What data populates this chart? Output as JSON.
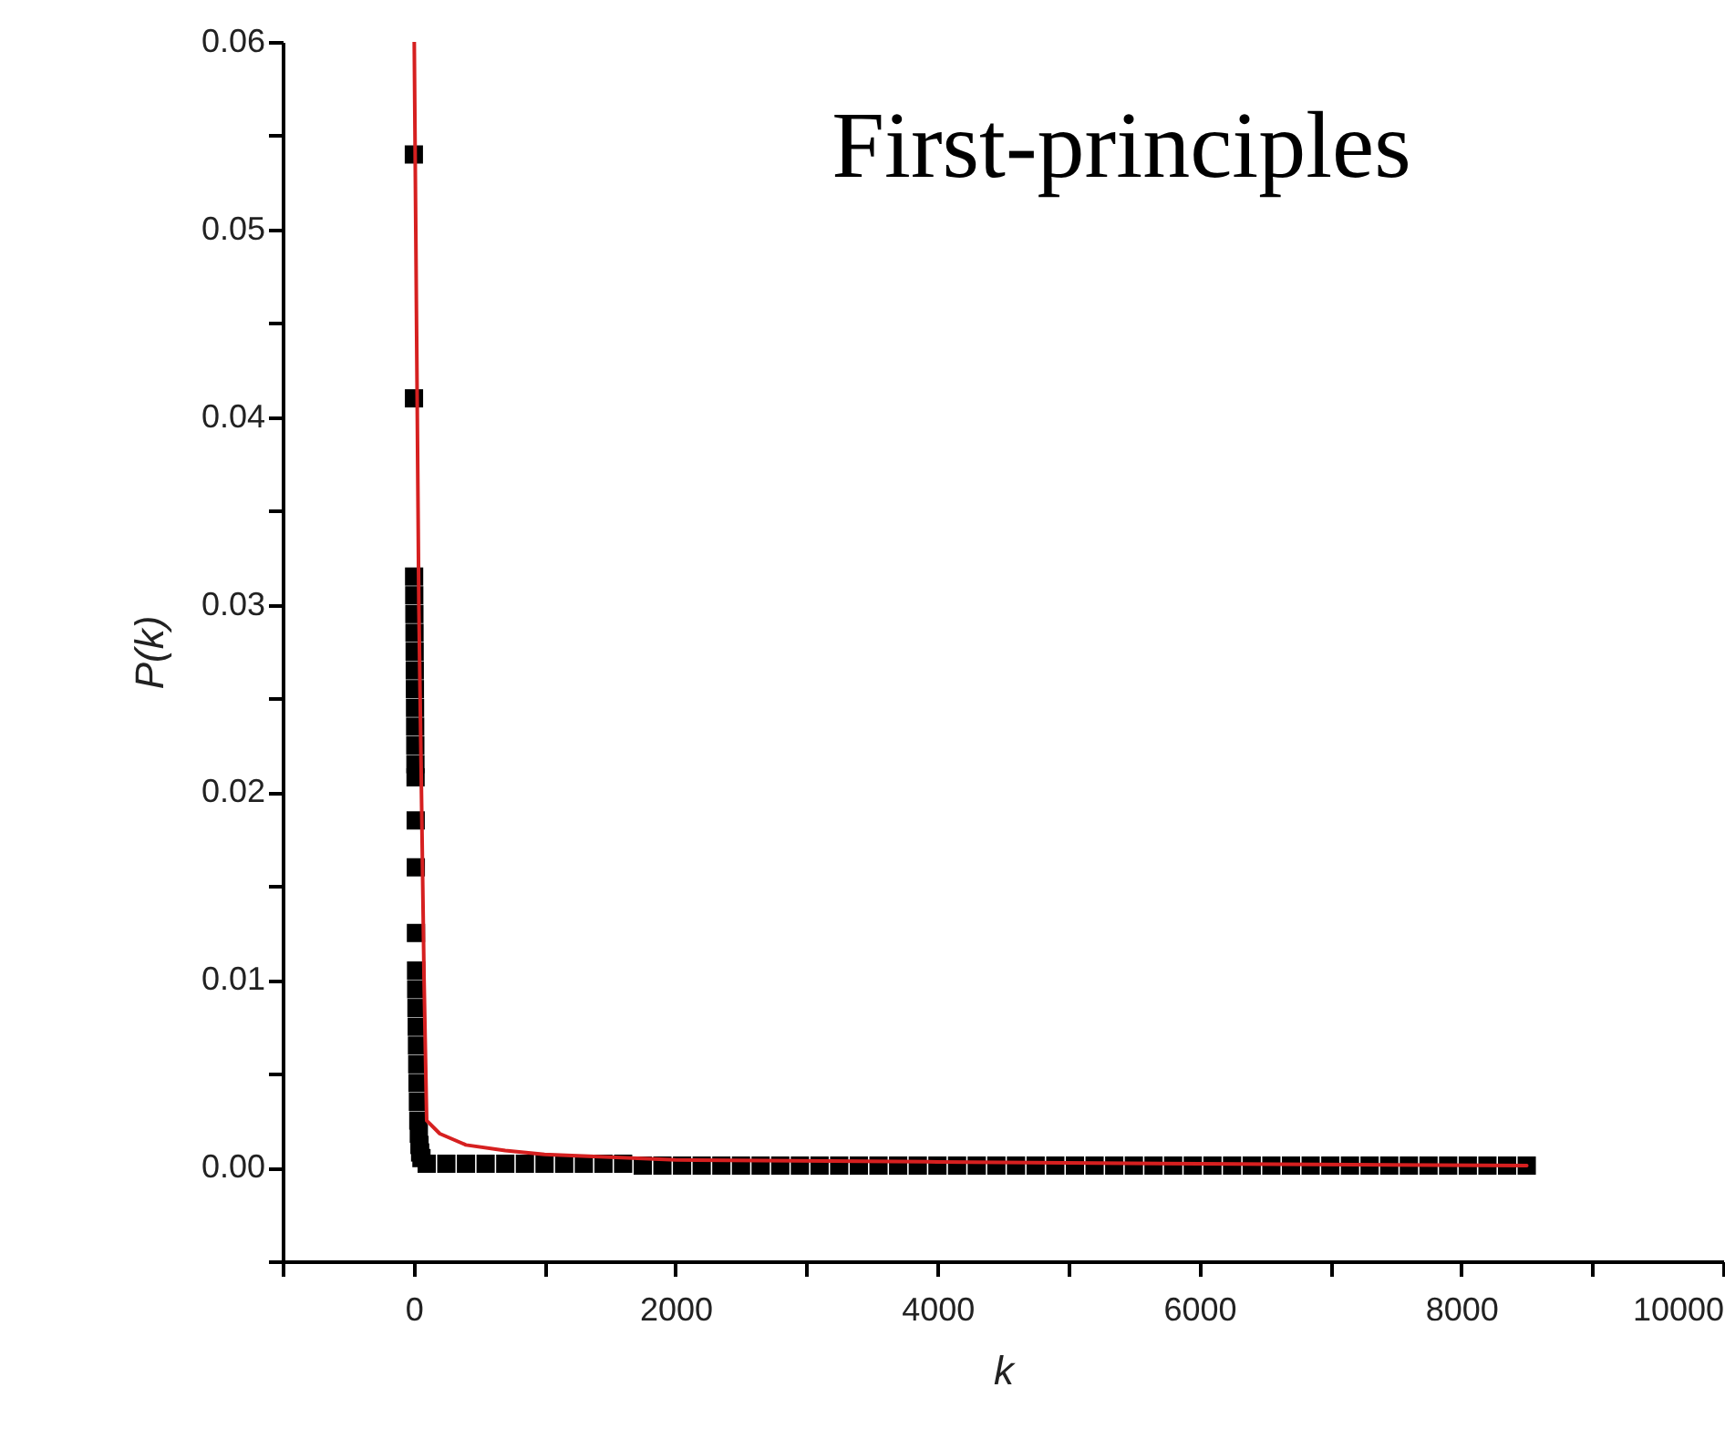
{
  "chart_data": {
    "type": "scatter",
    "xlabel": "k",
    "ylabel": "P(k)",
    "annotations": [
      "First-principles"
    ],
    "xlim": [
      -1000,
      10000
    ],
    "xticks": [
      {
        "value": -1000,
        "label": null
      },
      0,
      {
        "value": 1000,
        "label": null
      },
      2000,
      {
        "value": 3000,
        "label": null
      },
      4000,
      {
        "value": 5000,
        "label": null
      },
      6000,
      {
        "value": 7000,
        "label": null
      },
      8000,
      {
        "value": 9000,
        "label": null
      },
      10000
    ],
    "ylim": [
      -0.005,
      0.06
    ],
    "yticks": [
      {
        "value": -0.005,
        "label": null
      },
      {
        "value": 0,
        "label": "0.00"
      },
      {
        "value": 0.005,
        "label": null
      },
      0.01,
      {
        "value": 0.015,
        "label": null
      },
      0.02,
      {
        "value": 0.025,
        "label": null
      },
      0.03,
      {
        "value": 0.035,
        "label": null
      },
      0.04,
      {
        "value": 0.045,
        "label": null
      },
      0.05,
      {
        "value": 0.055,
        "label": null
      },
      0.06
    ],
    "series": [
      {
        "marker": "square",
        "color": "#000000",
        "x": [
          2,
          3,
          4,
          5,
          6,
          7,
          8,
          9,
          10,
          11,
          12,
          13,
          14,
          15,
          16,
          17,
          18,
          19,
          20,
          22,
          24,
          26,
          28,
          30,
          33,
          36,
          40,
          45,
          50,
          60,
          100,
          250,
          400,
          550,
          700,
          850,
          1000,
          1150,
          1300,
          1450,
          1600,
          1750,
          1900,
          2050,
          2200,
          2350,
          2500,
          2650,
          2800,
          2950,
          3100,
          3250,
          3400,
          3550,
          3700,
          3850,
          4000,
          4150,
          4300,
          4450,
          4600,
          4750,
          4900,
          5050,
          5200,
          5350,
          5500,
          5650,
          5800,
          5950,
          6100,
          6250,
          6400,
          6550,
          6700,
          6850,
          7000,
          7150,
          7300,
          7450,
          7600,
          7750,
          7900,
          8050,
          8200,
          8350,
          8500
        ],
        "values": [
          0.054,
          0.041,
          0.0315,
          0.0305,
          0.0295,
          0.0285,
          0.0275,
          0.0265,
          0.0255,
          0.0245,
          0.0235,
          0.0225,
          0.0215,
          0.0208,
          0.0185,
          0.016,
          0.0125,
          0.0105,
          0.0095,
          0.0085,
          0.0075,
          0.0065,
          0.0055,
          0.0045,
          0.0035,
          0.0025,
          0.0018,
          0.0012,
          0.0008,
          0.0005,
          0.0002,
          0.0002,
          0.0002,
          0.0002,
          0.0002,
          0.0002,
          0.0002,
          0.0002,
          0.0002,
          0.0002,
          0.0002,
          0.0001,
          0.0001,
          0.0001,
          0.0001,
          0.0001,
          0.0001,
          0.0001,
          0.0001,
          0.0001,
          0.0001,
          0.0001,
          0.0001,
          0.0001,
          0.0001,
          0.0001,
          0.0001,
          0.0001,
          0.0001,
          0.0001,
          0.0001,
          0.0001,
          0.0001,
          0.0001,
          0.0001,
          0.0001,
          0.0001,
          0.0001,
          0.0001,
          0.0001,
          0.0001,
          0.0001,
          0.0001,
          0.0001,
          0.0001,
          0.0001,
          0.0001,
          0.0001,
          0.0001,
          0.0001,
          0.0001,
          0.0001,
          0.0001,
          0.0001,
          0.0001,
          0.0001,
          0.0001
        ]
      },
      {
        "type": "line",
        "marker": "none",
        "color": "#d62020",
        "x": [
          5,
          40,
          80,
          100,
          200,
          400,
          700,
          1000,
          2000,
          4000,
          6000,
          8500
        ],
        "values": [
          0.06,
          0.03,
          0.01,
          0.0025,
          0.0018,
          0.0012,
          0.0009,
          0.0007,
          0.0004,
          0.0003,
          0.0002,
          0.0001
        ]
      }
    ]
  }
}
